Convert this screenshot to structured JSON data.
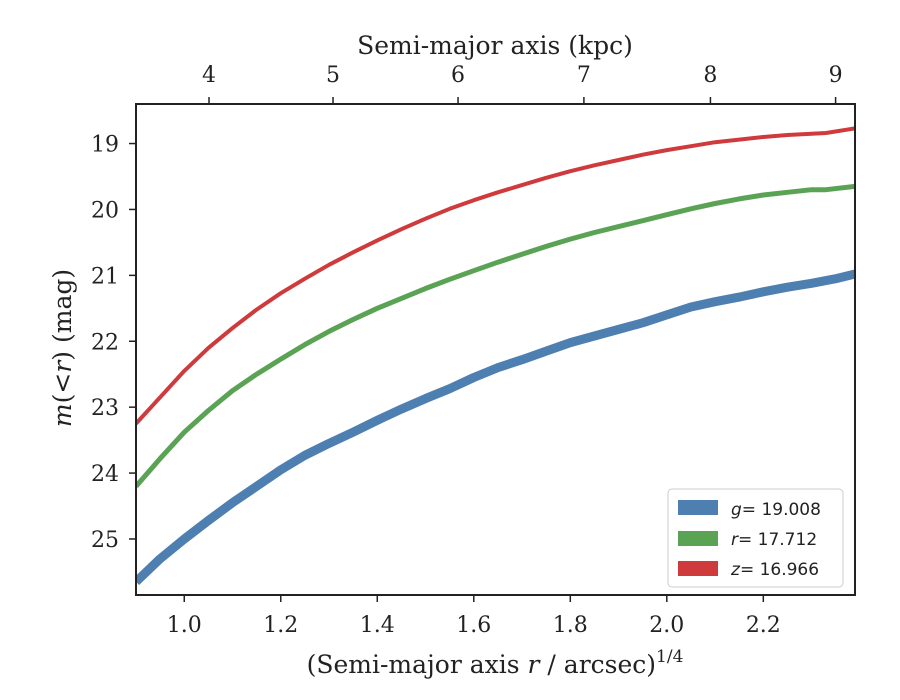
{
  "chart_data": {
    "type": "line",
    "xlabel": {
      "pre": "(Semi-major axis ",
      "var": "r",
      "post": " / arcsec)",
      "sup": "1/4"
    },
    "ylabel": {
      "pre": "m",
      "mid": "(<",
      "var": "r",
      "post": ") (mag)"
    },
    "top_xlabel": "Semi-major axis (kpc)",
    "xlim": [
      0.9,
      2.39
    ],
    "ylim": [
      25.85,
      18.4
    ],
    "y_inverted": true,
    "x_ticks": [
      "1.0",
      "1.2",
      "1.4",
      "1.6",
      "1.8",
      "2.0",
      "2.2"
    ],
    "x_tick_values": [
      1.0,
      1.2,
      1.4,
      1.6,
      1.8,
      2.0,
      2.2
    ],
    "y_ticks": [
      "19",
      "20",
      "21",
      "22",
      "23",
      "24",
      "25"
    ],
    "y_tick_values": [
      19,
      20,
      21,
      22,
      23,
      24,
      25
    ],
    "top_ticks": [
      "4",
      "5",
      "6",
      "7",
      "8",
      "9"
    ],
    "top_tick_x_values": [
      1.0513,
      1.3083,
      1.5674,
      1.8282,
      2.0904,
      2.3498
    ],
    "legend_position": "lower-right",
    "series": [
      {
        "name_var": "g",
        "name_value": "= 19.008",
        "color": "#4e7fb1",
        "x": [
          0.9,
          0.95,
          1.0,
          1.05,
          1.1,
          1.15,
          1.2,
          1.25,
          1.3,
          1.35,
          1.4,
          1.45,
          1.5,
          1.55,
          1.6,
          1.65,
          1.7,
          1.75,
          1.8,
          1.85,
          1.9,
          1.95,
          2.0,
          2.05,
          2.1,
          2.15,
          2.2,
          2.25,
          2.3,
          2.35,
          2.39
        ],
        "y": [
          25.65,
          25.3,
          25.0,
          24.72,
          24.45,
          24.2,
          23.95,
          23.73,
          23.55,
          23.38,
          23.2,
          23.03,
          22.87,
          22.72,
          22.55,
          22.4,
          22.28,
          22.15,
          22.02,
          21.92,
          21.82,
          21.72,
          21.6,
          21.48,
          21.4,
          21.33,
          21.25,
          21.18,
          21.12,
          21.05,
          20.98
        ]
      },
      {
        "name_var": "r",
        "name_value": "= 17.712",
        "color": "#5aa355",
        "x": [
          0.9,
          0.95,
          1.0,
          1.05,
          1.1,
          1.15,
          1.2,
          1.25,
          1.3,
          1.35,
          1.4,
          1.45,
          1.5,
          1.55,
          1.6,
          1.65,
          1.7,
          1.75,
          1.8,
          1.85,
          1.9,
          1.95,
          2.0,
          2.05,
          2.1,
          2.15,
          2.2,
          2.25,
          2.3,
          2.33,
          2.39
        ],
        "y": [
          24.2,
          23.78,
          23.38,
          23.05,
          22.75,
          22.5,
          22.27,
          22.05,
          21.85,
          21.67,
          21.5,
          21.35,
          21.2,
          21.06,
          20.93,
          20.8,
          20.68,
          20.56,
          20.45,
          20.35,
          20.26,
          20.17,
          20.08,
          19.99,
          19.91,
          19.84,
          19.78,
          19.74,
          19.7,
          19.7,
          19.65
        ]
      },
      {
        "name_var": "z",
        "name_value": "= 16.966",
        "color": "#cf3a3c",
        "x": [
          0.9,
          0.95,
          1.0,
          1.05,
          1.1,
          1.15,
          1.2,
          1.25,
          1.3,
          1.35,
          1.4,
          1.45,
          1.5,
          1.55,
          1.6,
          1.65,
          1.7,
          1.75,
          1.8,
          1.85,
          1.9,
          1.95,
          2.0,
          2.05,
          2.1,
          2.15,
          2.2,
          2.25,
          2.3,
          2.33,
          2.39
        ],
        "y": [
          23.25,
          22.85,
          22.45,
          22.1,
          21.8,
          21.52,
          21.27,
          21.05,
          20.84,
          20.65,
          20.47,
          20.3,
          20.14,
          19.99,
          19.86,
          19.74,
          19.63,
          19.52,
          19.42,
          19.33,
          19.25,
          19.17,
          19.1,
          19.04,
          18.98,
          18.94,
          18.9,
          18.87,
          18.85,
          18.84,
          18.77
        ]
      }
    ]
  }
}
